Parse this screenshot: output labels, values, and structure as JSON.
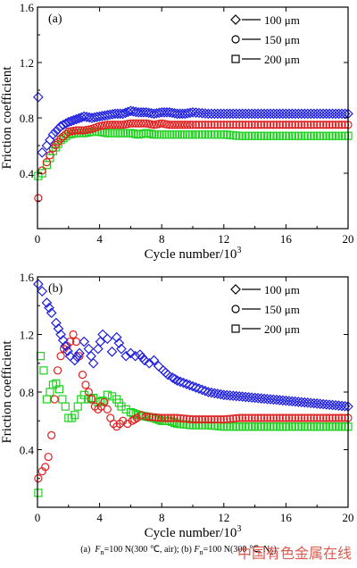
{
  "chart_data": [
    {
      "type": "scatter",
      "panel_label": "(a)",
      "xlabel": "Cycle number/10",
      "xlabel_sup": "3",
      "ylabel": "Friction coefficient",
      "xlim": [
        0,
        20
      ],
      "ylim": [
        0,
        1.6
      ],
      "xticks": [
        "0",
        "4",
        "8",
        "12",
        "16",
        "20"
      ],
      "yticks": [
        "0.4",
        "0.8",
        "1.2",
        "1.6"
      ],
      "legend_position": "top-right",
      "series": [
        {
          "name": "100 μm",
          "marker": "diamond",
          "color": "#1f1fe0",
          "x": [
            0.05,
            0.3,
            0.6,
            1.0,
            1.5,
            2.0,
            2.5,
            3.0,
            3.5,
            4.0,
            4.5,
            5.0,
            5.5,
            6.0,
            6.5,
            7.0,
            7.5,
            8.0,
            8.5,
            9.0,
            9.5,
            10,
            11,
            12,
            13,
            14,
            15,
            16,
            17,
            18,
            19,
            20
          ],
          "y": [
            0.95,
            0.55,
            0.6,
            0.68,
            0.74,
            0.77,
            0.79,
            0.81,
            0.8,
            0.81,
            0.82,
            0.83,
            0.83,
            0.85,
            0.84,
            0.84,
            0.83,
            0.84,
            0.84,
            0.83,
            0.83,
            0.84,
            0.83,
            0.83,
            0.83,
            0.83,
            0.83,
            0.83,
            0.83,
            0.83,
            0.83,
            0.83
          ]
        },
        {
          "name": "150 μm",
          "marker": "circle",
          "color": "#e01f1f",
          "x": [
            0.05,
            0.3,
            0.6,
            1.0,
            1.5,
            2.0,
            2.5,
            3.0,
            3.5,
            4.0,
            4.5,
            5.0,
            5.5,
            6.0,
            6.5,
            7.0,
            7.5,
            8.0,
            8.5,
            9.0,
            9.5,
            10,
            11,
            12,
            13,
            14,
            15,
            16,
            17,
            18,
            19,
            20
          ],
          "y": [
            0.22,
            0.42,
            0.48,
            0.58,
            0.65,
            0.7,
            0.71,
            0.71,
            0.72,
            0.74,
            0.75,
            0.75,
            0.75,
            0.76,
            0.76,
            0.76,
            0.75,
            0.76,
            0.75,
            0.75,
            0.75,
            0.75,
            0.75,
            0.75,
            0.75,
            0.75,
            0.75,
            0.75,
            0.75,
            0.75,
            0.75,
            0.75
          ]
        },
        {
          "name": "200 μm",
          "marker": "square",
          "color": "#1fd21f",
          "x": [
            0.05,
            0.3,
            0.6,
            1.0,
            1.5,
            2.0,
            2.5,
            3.0,
            3.5,
            4.0,
            4.5,
            5.0,
            5.5,
            6.0,
            6.5,
            7.0,
            7.5,
            8.0,
            8.5,
            9.0,
            9.5,
            10,
            11,
            12,
            13,
            14,
            15,
            16,
            17,
            18,
            19,
            20
          ],
          "y": [
            0.38,
            0.4,
            0.46,
            0.56,
            0.64,
            0.68,
            0.69,
            0.69,
            0.7,
            0.7,
            0.69,
            0.69,
            0.69,
            0.69,
            0.68,
            0.69,
            0.68,
            0.68,
            0.68,
            0.68,
            0.68,
            0.68,
            0.68,
            0.68,
            0.67,
            0.67,
            0.67,
            0.67,
            0.67,
            0.67,
            0.67,
            0.67
          ]
        }
      ]
    },
    {
      "type": "scatter",
      "panel_label": "(b)",
      "xlabel": "Cycle number/10",
      "xlabel_sup": "3",
      "ylabel": "Friction coefficient",
      "xlim": [
        0,
        20
      ],
      "ylim": [
        0,
        1.6
      ],
      "xticks": [
        "0",
        "4",
        "8",
        "12",
        "16",
        "20"
      ],
      "yticks": [
        "0.4",
        "0.8",
        "1.2",
        "1.6"
      ],
      "legend_position": "top-right",
      "series": [
        {
          "name": "100 μm",
          "marker": "diamond",
          "color": "#1f1fe0",
          "x": [
            0.05,
            0.3,
            0.6,
            0.9,
            1.2,
            1.5,
            1.8,
            2.1,
            2.4,
            2.7,
            3.0,
            3.3,
            3.6,
            3.9,
            4.2,
            4.5,
            4.8,
            5.1,
            5.4,
            5.7,
            6.0,
            6.3,
            6.6,
            6.9,
            7.2,
            7.5,
            7.8,
            8.1,
            8.4,
            8.7,
            9,
            10,
            11,
            12,
            13,
            14,
            15,
            16,
            17,
            18,
            19,
            20
          ],
          "y": [
            1.55,
            1.5,
            1.42,
            1.35,
            1.28,
            1.2,
            1.12,
            1.05,
            1.02,
            1.07,
            1.15,
            1.1,
            1.0,
            1.1,
            1.2,
            1.17,
            1.08,
            1.18,
            1.1,
            1.05,
            1.07,
            1.05,
            1.06,
            1.02,
            1.0,
            1.02,
            0.98,
            0.95,
            0.92,
            0.9,
            0.88,
            0.84,
            0.8,
            0.78,
            0.77,
            0.76,
            0.75,
            0.74,
            0.73,
            0.72,
            0.71,
            0.7
          ]
        },
        {
          "name": "150 μm",
          "marker": "circle",
          "color": "#e01f1f",
          "x": [
            0.05,
            0.3,
            0.5,
            0.7,
            0.9,
            1.1,
            1.3,
            1.5,
            1.7,
            1.9,
            2.1,
            2.3,
            2.5,
            2.7,
            2.9,
            3.1,
            3.3,
            3.5,
            3.7,
            3.9,
            4.1,
            4.3,
            4.5,
            4.7,
            4.9,
            5.1,
            5.3,
            5.5,
            5.8,
            6.1,
            6.4,
            6.7,
            7,
            8,
            9,
            10,
            11,
            12,
            13,
            14,
            15,
            16,
            17,
            18,
            19,
            20
          ],
          "y": [
            0.2,
            0.25,
            0.28,
            0.35,
            0.5,
            0.75,
            0.95,
            1.05,
            1.1,
            1.12,
            1.15,
            1.2,
            1.15,
            1.05,
            0.92,
            0.85,
            0.8,
            0.75,
            0.7,
            0.68,
            0.7,
            0.73,
            0.68,
            0.62,
            0.58,
            0.56,
            0.58,
            0.6,
            0.58,
            0.6,
            0.62,
            0.64,
            0.63,
            0.62,
            0.62,
            0.61,
            0.61,
            0.61,
            0.62,
            0.62,
            0.62,
            0.62,
            0.62,
            0.62,
            0.62,
            0.62
          ]
        },
        {
          "name": "200 μm",
          "marker": "square",
          "color": "#1fd21f",
          "x": [
            0.05,
            0.2,
            0.4,
            0.6,
            0.8,
            1.0,
            1.2,
            1.4,
            1.6,
            1.8,
            2.0,
            2.2,
            2.4,
            2.6,
            2.8,
            3.0,
            3.3,
            3.6,
            3.9,
            4.2,
            4.5,
            4.8,
            5.1,
            5.4,
            5.7,
            6,
            6.5,
            7,
            7.5,
            8,
            8.5,
            9,
            10,
            11,
            12,
            13,
            14,
            15,
            16,
            17,
            18,
            19,
            20
          ],
          "y": [
            0.1,
            1.05,
            0.95,
            0.75,
            0.8,
            0.85,
            0.86,
            0.82,
            0.75,
            0.7,
            0.62,
            0.62,
            0.64,
            0.7,
            0.75,
            0.78,
            0.75,
            0.76,
            0.73,
            0.74,
            0.78,
            0.77,
            0.75,
            0.7,
            0.68,
            0.66,
            0.64,
            0.63,
            0.62,
            0.6,
            0.6,
            0.58,
            0.57,
            0.57,
            0.56,
            0.56,
            0.56,
            0.56,
            0.56,
            0.56,
            0.56,
            0.56,
            0.56
          ]
        }
      ]
    }
  ],
  "caption": {
    "a_label": "(a)",
    "a_var": "F",
    "a_sub": "n",
    "a_text": "=100 N(300 ℃, air);",
    "b_label": "(b)",
    "b_var": "F",
    "b_sub": "n",
    "b_text": "=100 N(300 ℃, N",
    "b_sub2": "2",
    "b_end": ")"
  },
  "watermark": "中国有色金属在线"
}
